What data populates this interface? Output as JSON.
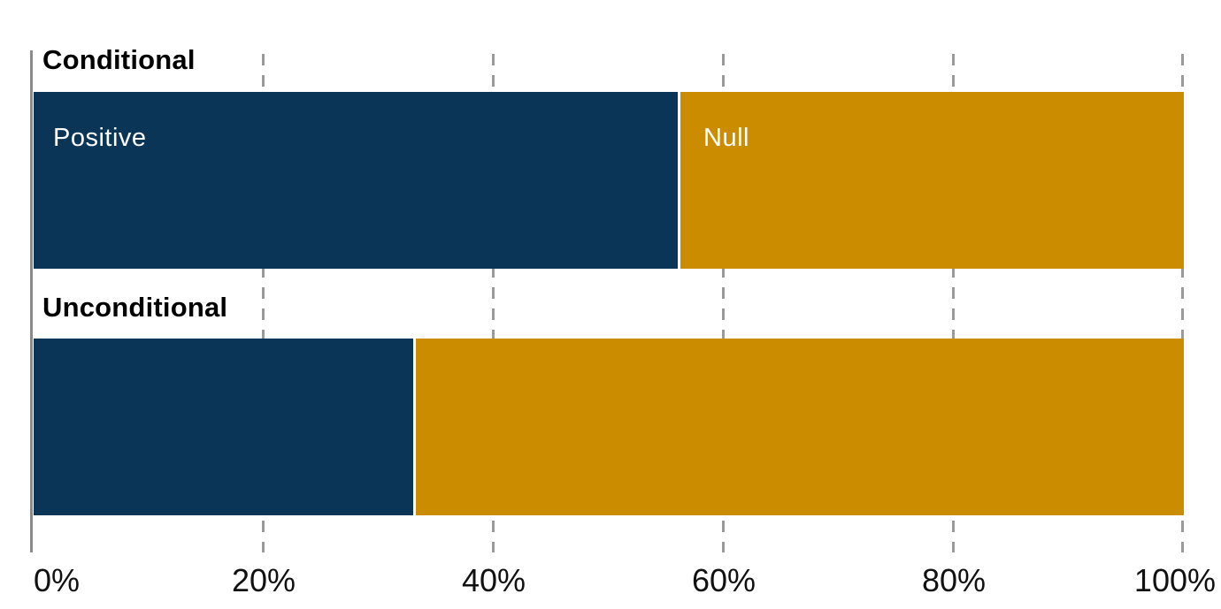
{
  "chart_data": {
    "type": "bar",
    "orientation": "horizontal",
    "stacked": true,
    "title": "",
    "categories": [
      "Conditional",
      "Unconditional"
    ],
    "series": [
      {
        "name": "Positive",
        "color": "#0A3557",
        "values": [
          56,
          33
        ]
      },
      {
        "name": "Null",
        "color": "#CC8C00",
        "values": [
          44,
          67
        ]
      }
    ],
    "segment_labels_shown_on_first_bar_only": true,
    "x_axis": {
      "ticks": [
        "0%",
        "20%",
        "40%",
        "60%",
        "80%",
        "100%"
      ],
      "range": [
        0,
        100
      ],
      "gridlines": "dashed"
    },
    "layout_hints": {
      "legend": "none",
      "grid": "vertical-dashed",
      "bar_gap_color": "#FFFFFF"
    }
  },
  "colors": {
    "positive": "#0A3557",
    "null": "#CC8C00",
    "axis_line": "#8A8A8A",
    "gridline": "#9A9A9A",
    "text": "#000000",
    "bar_text": "#FFFFFF",
    "background": "#FFFFFF"
  }
}
